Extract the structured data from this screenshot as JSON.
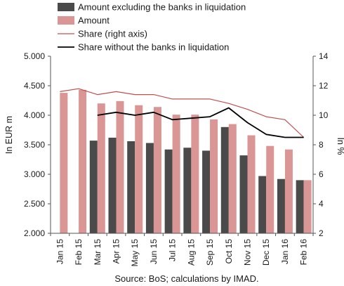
{
  "chart_data": {
    "type": "bar",
    "categories": [
      "Jan 15",
      "Feb 15",
      "Mar 15",
      "Apr 15",
      "May 15",
      "Jun 15",
      "Jul 15",
      "Aug 15",
      "Sep 15",
      "Oct 15",
      "Nov 15",
      "Dec 15",
      "Jan 16",
      "Feb 16"
    ],
    "series": [
      {
        "name": "Amount excluding the banks in liquidation",
        "kind": "bar",
        "axis": "left",
        "color": "#4a4a4a",
        "values": [
          null,
          null,
          3570,
          3620,
          3560,
          3530,
          3420,
          3450,
          3400,
          3800,
          3320,
          2970,
          2920,
          2900
        ]
      },
      {
        "name": "Amount",
        "kind": "bar",
        "axis": "left",
        "color": "#d99694",
        "values": [
          4380,
          4430,
          4200,
          4240,
          4170,
          4140,
          4010,
          4010,
          3930,
          3850,
          3660,
          3480,
          3420,
          2900
        ]
      },
      {
        "name": "Share (right axis)",
        "kind": "line",
        "axis": "right",
        "color": "#c0504d",
        "values": [
          11.6,
          11.8,
          11.4,
          11.6,
          11.4,
          11.4,
          11.1,
          11.1,
          11.1,
          10.8,
          10.4,
          9.9,
          9.7,
          8.5
        ]
      },
      {
        "name": "Share without the banks in liquidation",
        "kind": "line",
        "axis": "right",
        "color": "#000000",
        "values": [
          null,
          null,
          10.0,
          10.2,
          10.0,
          10.2,
          9.7,
          9.8,
          9.9,
          10.5,
          9.5,
          8.7,
          8.5,
          8.5
        ]
      }
    ],
    "ylabel": "In EUR m",
    "y2label": "In %",
    "ylim": [
      2000,
      5000
    ],
    "yticks": [
      "2.000",
      "2.500",
      "3.000",
      "3.500",
      "4.000",
      "4.500",
      "5.000"
    ],
    "y2lim": [
      2,
      14
    ],
    "y2ticks": [
      "2",
      "4",
      "6",
      "8",
      "10",
      "12",
      "14"
    ],
    "grid": false,
    "legend": "top-left"
  },
  "source": "Source: BoS; calculations by IMAD."
}
